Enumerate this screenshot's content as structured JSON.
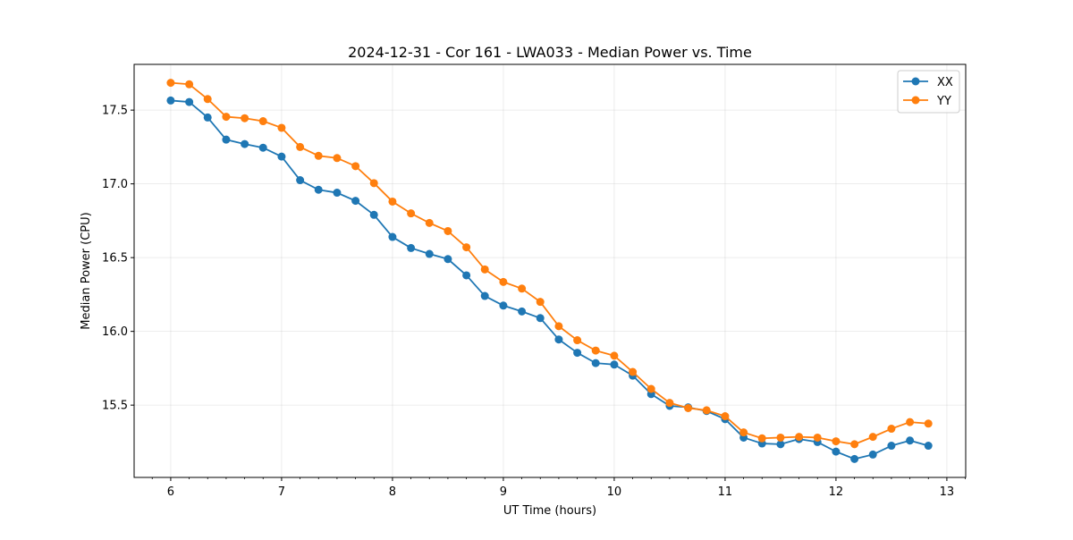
{
  "chart_data": {
    "type": "line",
    "title": "2024-12-31 - Cor 161 - LWA033 - Median Power vs. Time",
    "xlabel": "UT Time (hours)",
    "ylabel": "Median Power (CPU)",
    "xlim": [
      5.67,
      13.17
    ],
    "ylim": [
      15.01,
      17.81
    ],
    "grid": true,
    "legend_position": "top-right",
    "xticks": [
      6,
      7,
      8,
      9,
      10,
      11,
      12,
      13
    ],
    "xtick_labels": [
      "6",
      "7",
      "8",
      "9",
      "10",
      "11",
      "12",
      "13"
    ],
    "yticks": [
      15.5,
      16.0,
      16.5,
      17.0,
      17.5
    ],
    "ytick_labels": [
      "15.5",
      "16.0",
      "16.5",
      "17.0",
      "17.5"
    ],
    "x": [
      6.0,
      6.167,
      6.333,
      6.5,
      6.667,
      6.833,
      7.0,
      7.167,
      7.333,
      7.5,
      7.667,
      7.833,
      8.0,
      8.167,
      8.333,
      8.5,
      8.667,
      8.833,
      9.0,
      9.167,
      9.333,
      9.5,
      9.667,
      9.833,
      10.0,
      10.167,
      10.333,
      10.5,
      10.667,
      10.833,
      11.0,
      11.167,
      11.333,
      11.5,
      11.667,
      11.833,
      12.0,
      12.167,
      12.333,
      12.5,
      12.667,
      12.833
    ],
    "series": [
      {
        "name": "XX",
        "color": "#1f77b4",
        "values": [
          17.565,
          17.555,
          17.45,
          17.3,
          17.27,
          17.245,
          17.185,
          17.025,
          16.96,
          16.94,
          16.885,
          16.79,
          16.64,
          16.565,
          16.525,
          16.49,
          16.38,
          16.24,
          16.175,
          16.135,
          16.09,
          15.945,
          15.855,
          15.785,
          15.775,
          15.7,
          15.575,
          15.495,
          15.485,
          15.46,
          15.405,
          15.28,
          15.24,
          15.235,
          15.27,
          15.25,
          15.185,
          15.135,
          15.165,
          15.225,
          15.26,
          15.225
        ]
      },
      {
        "name": "YY",
        "color": "#ff7f0e",
        "values": [
          17.685,
          17.675,
          17.575,
          17.455,
          17.445,
          17.425,
          17.38,
          17.25,
          17.19,
          17.175,
          17.12,
          17.005,
          16.88,
          16.8,
          16.735,
          16.68,
          16.57,
          16.42,
          16.335,
          16.29,
          16.2,
          16.035,
          15.94,
          15.87,
          15.835,
          15.725,
          15.61,
          15.515,
          15.48,
          15.465,
          15.425,
          15.315,
          15.275,
          15.28,
          15.285,
          15.28,
          15.255,
          15.235,
          15.285,
          15.34,
          15.385,
          15.375
        ]
      }
    ]
  }
}
